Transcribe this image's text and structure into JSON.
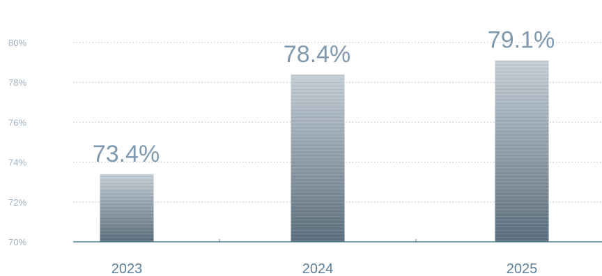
{
  "chart_data": {
    "type": "bar",
    "categories": [
      "2023",
      "2024",
      "2025"
    ],
    "values": [
      73.4,
      78.4,
      79.1
    ],
    "data_labels": [
      "73.4%",
      "78.4%",
      "79.1%"
    ],
    "ylim": [
      70,
      80
    ],
    "yticks": [
      {
        "value": 70,
        "label": "70%"
      },
      {
        "value": 72,
        "label": "72%"
      },
      {
        "value": 74,
        "label": "74%"
      },
      {
        "value": 76,
        "label": "76%"
      },
      {
        "value": 78,
        "label": "78%"
      },
      {
        "value": 80,
        "label": "80%"
      }
    ],
    "grid": true,
    "legend": "none",
    "colors": {
      "bar_top": "#c4ced6",
      "bar_bottom": "#5d6f7d",
      "axis": "#5b8299",
      "grid": "#b5bec6",
      "tick_text": "#9fb0c0",
      "category_text": "#5f7f99",
      "data_label_text": "#7f98ad"
    }
  }
}
